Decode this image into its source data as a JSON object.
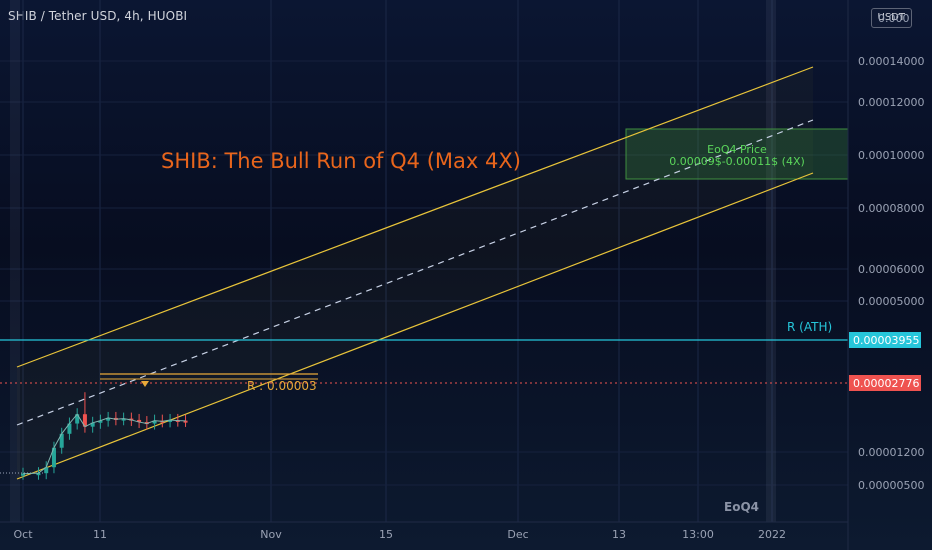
{
  "header": {
    "title": "SHIB / Tether USD, 4h, HUOBI",
    "currency": "USDT"
  },
  "colors": {
    "channel": "#e8c43a",
    "median": "#c8d2e6",
    "ath_line": "#26c6da",
    "price_line": "#ef5350",
    "headline": "#e8651c",
    "target_text": "#5bd65b",
    "resistance_text": "#e8a93a",
    "candle_up": "#26a69a",
    "candle_down": "#ef5350"
  },
  "chart_data": {
    "type": "line",
    "headline": "SHIB: The Bull Run of Q4 (Max 4X)",
    "xaxis": {
      "ticks": [
        "Oct",
        "11",
        "Nov",
        "15",
        "Dec",
        "13",
        "13:00",
        "2022"
      ],
      "scale": "date"
    },
    "yaxis": {
      "scale": "log",
      "ticks": [
        "0.00014000",
        "0.00012000",
        "0.00010000",
        "0.00008000",
        "0.00006000",
        "0.00005000",
        "0.00001200",
        "0.00000500"
      ],
      "top_label": "0.000"
    },
    "ath": {
      "label": "R (ATH)",
      "value": "0.00003955"
    },
    "last_price": "0.00002776",
    "resistance": {
      "label": "R : 0.00003"
    },
    "target_box": {
      "title": "EoQ4 Price",
      "range": "0.00009$-0.00011$ (4X)"
    },
    "period_label": "EoQ4",
    "price_series": [
      {
        "t": "Oct 1",
        "v": 7.2e-06
      },
      {
        "t": "Oct 3",
        "v": 7.3e-06
      },
      {
        "t": "Oct 4",
        "v": 8.5e-06
      },
      {
        "t": "Oct 5",
        "v": 1.4e-05
      },
      {
        "t": "Oct 6",
        "v": 2e-05
      },
      {
        "t": "Oct 7",
        "v": 2.6e-05
      },
      {
        "t": "Oct 8",
        "v": 3.3e-05
      },
      {
        "t": "Oct 9",
        "v": 2.4e-05
      },
      {
        "t": "Oct 10",
        "v": 2.65e-05
      },
      {
        "t": "Oct 11",
        "v": 2.8e-05
      },
      {
        "t": "Oct 12",
        "v": 3e-05
      },
      {
        "t": "Oct 13",
        "v": 2.9e-05
      },
      {
        "t": "Oct 14",
        "v": 2.95e-05
      },
      {
        "t": "Oct 15",
        "v": 2.85e-05
      },
      {
        "t": "Oct 16",
        "v": 2.7e-05
      },
      {
        "t": "Oct 17",
        "v": 2.6e-05
      },
      {
        "t": "Oct 18",
        "v": 2.8e-05
      },
      {
        "t": "Oct 19",
        "v": 2.75e-05
      },
      {
        "t": "Oct 20",
        "v": 2.85e-05
      },
      {
        "t": "Oct 21",
        "v": 2.8e-05
      },
      {
        "t": "Oct 22",
        "v": 2.78e-05
      }
    ]
  }
}
